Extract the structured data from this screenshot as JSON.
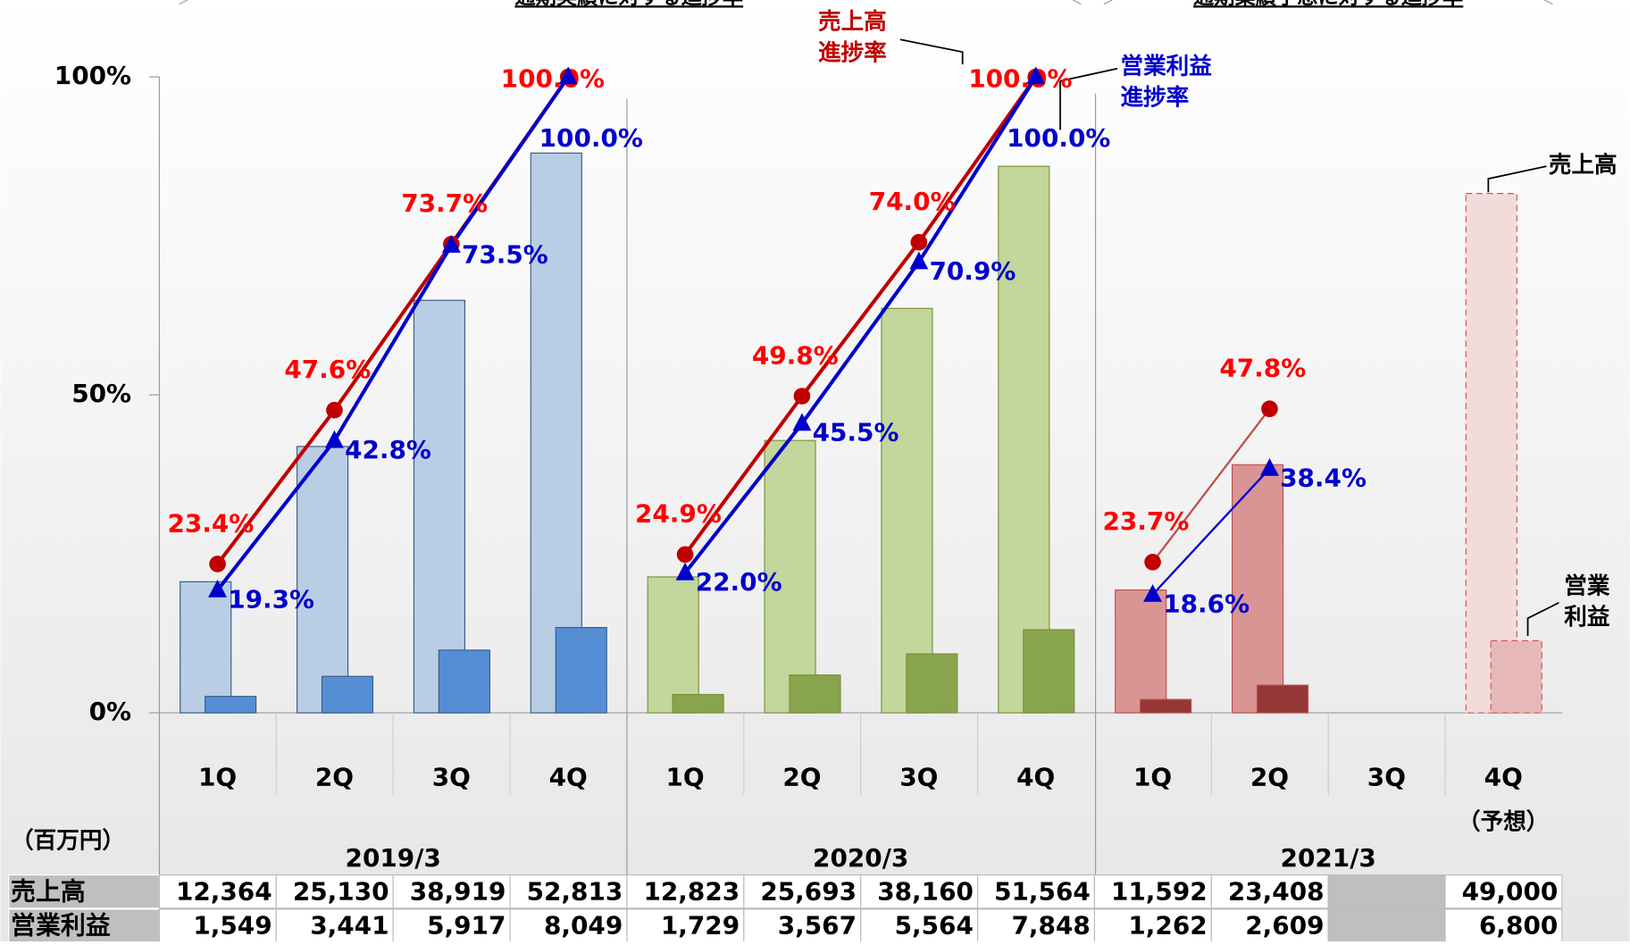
{
  "chart_data": {
    "type": "bar_line",
    "top_notes": [
      "通期実績に対する進捗率",
      "通期業績予想に対する進捗率"
    ],
    "ylim": [
      0,
      100
    ],
    "yticks": [
      {
        "value": 0,
        "label": "0%"
      },
      {
        "value": 50,
        "label": "50%"
      },
      {
        "value": 100,
        "label": "100%"
      }
    ],
    "y2lim": [
      0,
      60000
    ],
    "unit": "（百万円）",
    "row_labels": [
      "売上高",
      "営業利益"
    ],
    "sales_rate_name": [
      "売上高",
      "進捗率"
    ],
    "profit_rate_name": [
      "営業利益",
      "進捗率"
    ],
    "sales_name": "売上高",
    "profit_name": [
      "営業",
      "利益"
    ],
    "sales_rate_color": "#ff0000",
    "profit_rate_color": "#0000cc",
    "years": [
      {
        "name": "2019/3",
        "sales_color": "#b9cde5",
        "profit_color": "#558ed5",
        "edge_color": "#385d8a",
        "quarters": [
          "1Q",
          "2Q",
          "3Q",
          "4Q"
        ],
        "sales": [
          12364,
          25130,
          38919,
          52813
        ],
        "sales_labels": [
          "12,364",
          "25,130",
          "38,919",
          "52,813"
        ],
        "profit": [
          1549,
          3441,
          5917,
          8049
        ],
        "profit_labels": [
          "1,549",
          "3,441",
          "5,917",
          "8,049"
        ],
        "sales_rate": [
          23.4,
          47.6,
          73.7,
          100.0
        ],
        "sales_rate_labels": [
          "23.4%",
          "47.6%",
          "73.7%",
          "100.0%"
        ],
        "profit_rate": [
          19.3,
          42.8,
          73.5,
          100.0
        ],
        "profit_rate_labels": [
          "19.3%",
          "42.8%",
          "73.5%",
          "100.0%"
        ]
      },
      {
        "name": "2020/3",
        "sales_color": "#c3d69b",
        "profit_color": "#88a44c",
        "edge_color": "#77933c",
        "quarters": [
          "1Q",
          "2Q",
          "3Q",
          "4Q"
        ],
        "sales": [
          12823,
          25693,
          38160,
          51564
        ],
        "sales_labels": [
          "12,823",
          "25,693",
          "38,160",
          "51,564"
        ],
        "profit": [
          1729,
          3567,
          5564,
          7848
        ],
        "profit_labels": [
          "1,729",
          "3,567",
          "5,564",
          "7,848"
        ],
        "sales_rate": [
          24.9,
          49.8,
          74.0,
          100.0
        ],
        "sales_rate_labels": [
          "24.9%",
          "49.8%",
          "74.0%",
          "100.0%"
        ],
        "profit_rate": [
          22.0,
          45.5,
          70.9,
          100.0
        ],
        "profit_rate_labels": [
          "22.0%",
          "45.5%",
          "70.9%",
          "100.0%"
        ]
      },
      {
        "name": "2021/3",
        "sales_color": "#d99594",
        "profit_color": "#953735",
        "edge_color": "#c0504d",
        "forecast_color": "#f2dcdb",
        "forecast_profit_color": "#e6b9b8",
        "forecast_note": "（予想）",
        "quarters": [
          "1Q",
          "2Q",
          "3Q",
          "4Q"
        ],
        "forecast": [
          false,
          false,
          false,
          true
        ],
        "sales": [
          11592,
          23408,
          null,
          49000
        ],
        "sales_labels": [
          "11,592",
          "23,408",
          null,
          "49,000"
        ],
        "profit": [
          1262,
          2609,
          null,
          6800
        ],
        "profit_labels": [
          "1,262",
          "2,609",
          null,
          "6,800"
        ],
        "sales_rate": [
          23.7,
          47.8
        ],
        "sales_rate_labels": [
          "23.7%",
          "47.8%"
        ],
        "profit_rate": [
          18.6,
          38.4
        ],
        "profit_rate_labels": [
          "18.6%",
          "38.4%"
        ]
      }
    ]
  }
}
